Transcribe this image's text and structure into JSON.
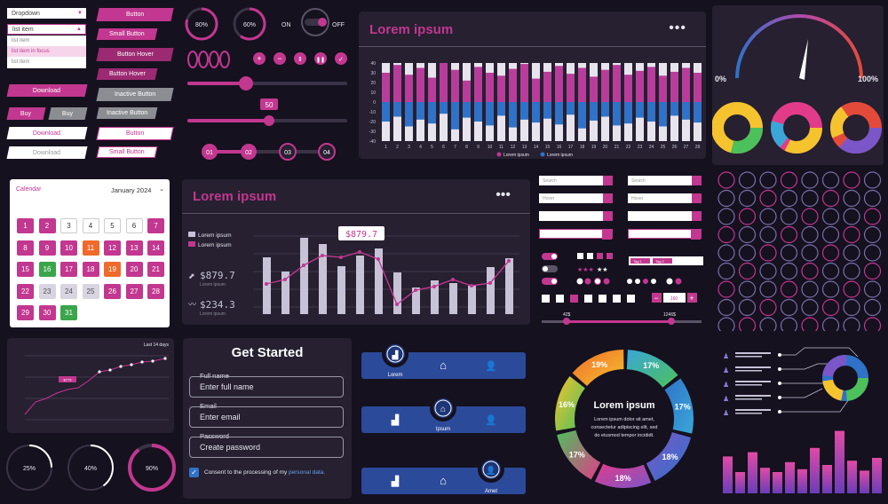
{
  "top_left": {
    "dropdown_placeholder": "Dropdown",
    "dropdown_value": "list item",
    "dropdown_items": [
      "list item",
      "list item in focus",
      "list item"
    ],
    "buttons_left": [
      "Download",
      "Buy",
      "Buy",
      "Download",
      "Download"
    ],
    "buttons_right": [
      "Button",
      "Small Button",
      "Button Hover",
      "Button Hover",
      "Inactive Button",
      "Inactive Button",
      "Button",
      "Small Button"
    ]
  },
  "controls": {
    "rings": [
      "80%",
      "60%"
    ],
    "toggle_on": "ON",
    "toggle_off": "OFF",
    "slider_value": "50",
    "steps": [
      "01",
      "02",
      "03",
      "04"
    ]
  },
  "bar_panel": {
    "title": "Lorem ipsum",
    "y_ticks": [
      "40",
      "30",
      "20",
      "10",
      "0",
      "-10",
      "-20",
      "-30",
      "-40"
    ],
    "legend": [
      "Lorem ipsum",
      "Lorem ipsum"
    ]
  },
  "gauge": {
    "min": "0%",
    "max": "100%"
  },
  "calendar": {
    "label": "Calendar",
    "month": "January 2024"
  },
  "line_panel": {
    "title": "Lorem ipsum",
    "legend": [
      "Lorem ipsum",
      "Lorem ipsum"
    ],
    "value_1": "$879.7",
    "value_1_label": "Lorem ipsum",
    "value_2": "$234.3",
    "value_2_label": "Lorem ipsum",
    "tooltip": "$879.7"
  },
  "form": {
    "title": "Get Started",
    "full_name_label": "Full name",
    "full_name_placeholder": "Enter full name",
    "email_label": "Email",
    "email_placeholder": "Enter email",
    "password_label": "Password",
    "password_placeholder": "Create password",
    "consent_text": "Consent to the processing of my",
    "consent_link": "personal data."
  },
  "nav_bars": [
    "Lorem",
    "Ipsum",
    "Amet"
  ],
  "donut": {
    "title": "Lorem ipsum",
    "text": [
      "Lorem ipsum dolor sit amet,",
      "consectetur adipiscing elit, sed",
      "do eiusmod tempor incididt."
    ],
    "slices": [
      "17%",
      "17%",
      "18%",
      "18%",
      "17%",
      "16%",
      "19%"
    ]
  },
  "small_line": {
    "legend": "Last 14 days",
    "tooltip": "$775"
  },
  "bottom_rings": [
    "25%",
    "40%",
    "90%"
  ],
  "search": {
    "placeholders": [
      "Search",
      "Hover",
      "",
      "",
      "Search",
      "Hover",
      "",
      ""
    ],
    "tags": [
      "Tag 1",
      "Tag 2"
    ],
    "stepper_value": "160",
    "range_min": "42$",
    "range_max": "1246$"
  },
  "colors": {
    "accent": "#c2378f",
    "blue": "#2f72c8",
    "panel": "#262031",
    "bg": "#15111f"
  },
  "chart_data": {
    "type": "bar",
    "categories": [
      "1",
      "2",
      "3",
      "4",
      "5",
      "6",
      "7",
      "8",
      "9",
      "10",
      "11",
      "12",
      "13",
      "14",
      "15",
      "16",
      "17",
      "18",
      "19",
      "20",
      "21",
      "22",
      "23",
      "24",
      "25",
      "26",
      "27",
      "28"
    ],
    "series": [
      {
        "name": "Lorem ipsum",
        "values": [
          30,
          38,
          28,
          35,
          25,
          40,
          33,
          22,
          36,
          30,
          27,
          34,
          39,
          24,
          31,
          37,
          29,
          35,
          26,
          33,
          38,
          28,
          32,
          36,
          27,
          31,
          35,
          30
        ]
      },
      {
        "name": "Lorem ipsum",
        "values": [
          -20,
          -15,
          -25,
          -18,
          -22,
          -12,
          -28,
          -16,
          -20,
          -24,
          -14,
          -26,
          -18,
          -21,
          -17,
          -23,
          -13,
          -27,
          -19,
          -15,
          -24,
          -22,
          -16,
          -20,
          -25,
          -14,
          -18,
          -21
        ]
      }
    ],
    "ylim": [
      -40,
      40
    ]
  }
}
